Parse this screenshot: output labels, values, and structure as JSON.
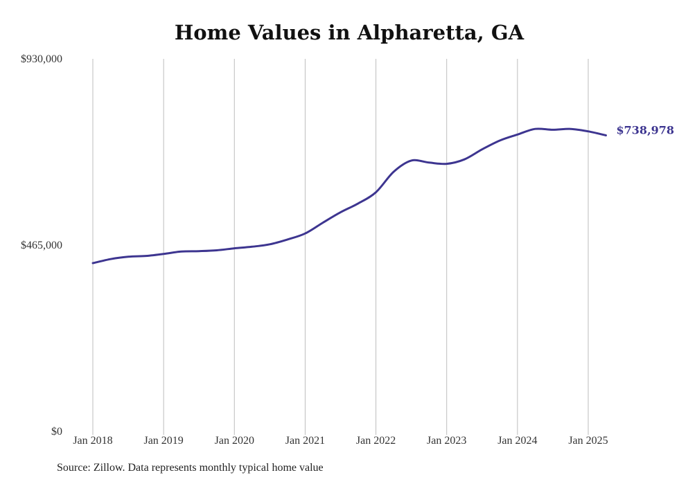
{
  "chart_data": {
    "type": "line",
    "title": "Home Values in Alpharetta, GA",
    "xlabel": "",
    "ylabel": "",
    "ylim": [
      0,
      930000
    ],
    "y_ticks": [
      {
        "value": 0,
        "label": "$0"
      },
      {
        "value": 465000,
        "label": "$465,000"
      },
      {
        "value": 930000,
        "label": "$930,000"
      }
    ],
    "x_ticks": [
      {
        "value": 2018,
        "label": "Jan 2018"
      },
      {
        "value": 2019,
        "label": "Jan 2019"
      },
      {
        "value": 2020,
        "label": "Jan 2020"
      },
      {
        "value": 2021,
        "label": "Jan 2021"
      },
      {
        "value": 2022,
        "label": "Jan 2022"
      },
      {
        "value": 2023,
        "label": "Jan 2023"
      },
      {
        "value": 2024,
        "label": "Jan 2024"
      },
      {
        "value": 2025,
        "label": "Jan 2025"
      }
    ],
    "xlim": [
      2018,
      2025.25
    ],
    "grid": "vertical",
    "line_color": "#3d3590",
    "end_label": "$738,978",
    "series": [
      {
        "x": [
          2018.0,
          2018.25,
          2018.5,
          2018.75,
          2019.0,
          2019.25,
          2019.5,
          2019.75,
          2020.0,
          2020.25,
          2020.5,
          2020.75,
          2021.0,
          2021.25,
          2021.5,
          2021.75,
          2022.0,
          2022.25,
          2022.5,
          2022.75,
          2023.0,
          2023.25,
          2023.5,
          2023.75,
          2024.0,
          2024.25,
          2024.5,
          2024.75,
          2025.0,
          2025.25
        ],
        "y": [
          420000,
          430000,
          436000,
          438000,
          443000,
          449000,
          450000,
          452000,
          457000,
          461000,
          467000,
          479000,
          494000,
          521000,
          547000,
          569000,
          597000,
          648000,
          676000,
          671000,
          668000,
          679000,
          704000,
          726000,
          741000,
          755000,
          753000,
          755000,
          749000,
          738978
        ]
      }
    ]
  },
  "source_note": "Source: Zillow. Data represents monthly typical home value"
}
